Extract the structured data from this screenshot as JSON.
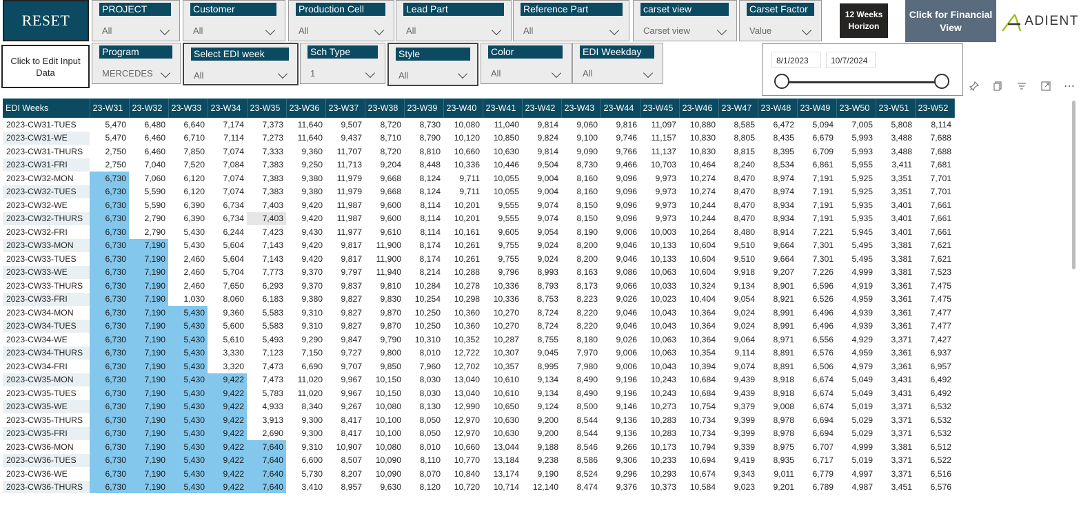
{
  "reset": {
    "label": "RESET"
  },
  "slicers_row1": [
    {
      "title": "PROJECT",
      "value": "All"
    },
    {
      "title": "Customer",
      "value": "All"
    },
    {
      "title": "Production Cell",
      "value": "All"
    },
    {
      "title": "Lead Part",
      "value": "All"
    },
    {
      "title": "Reference Part",
      "value": "All"
    },
    {
      "title": "carset view",
      "value": "Carset view"
    },
    {
      "title": "Carset Factor",
      "value": "Value"
    }
  ],
  "horizon_button": {
    "label": "12 Weeks Horizon"
  },
  "financial_button": {
    "label": "Click for Financial View"
  },
  "logo": {
    "text": "ADIENT",
    "accent": "#9bc31c"
  },
  "edit_button": {
    "label": "Click to Edit Input Data"
  },
  "slicers_row2": [
    {
      "title": "Program",
      "value": "MERCEDES"
    },
    {
      "title": "Select EDI week",
      "value": "All"
    },
    {
      "title": "Sch Type",
      "value": "1"
    },
    {
      "title": "Style",
      "value": "All"
    },
    {
      "title": "Color",
      "value": "All"
    },
    {
      "title": "EDI Weekday",
      "value": "All"
    }
  ],
  "date_range": {
    "start": "8/1/2023",
    "end": "10/7/2024"
  },
  "visual_icons": [
    "pin-icon",
    "copy-icon",
    "filter-icon",
    "focus-mode-icon",
    "more-options-icon"
  ],
  "colors": {
    "header": "#0b4a61",
    "highlight": "#83c7ec"
  },
  "table": {
    "corner": "EDI Weeks",
    "columns": [
      "23-W31",
      "23-W32",
      "23-W33",
      "23-W34",
      "23-W35",
      "23-W36",
      "23-W37",
      "23-W38",
      "23-W39",
      "23-W40",
      "23-W41",
      "23-W42",
      "23-W43",
      "23-W44",
      "23-W45",
      "23-W46",
      "23-W47",
      "23-W48",
      "23-W49",
      "23-W50",
      "23-W51",
      "23-W52"
    ],
    "rows": [
      {
        "label": "2023-CW31-TUES",
        "values": [
          "5,470",
          "6,480",
          "6,640",
          "7,174",
          "7,373",
          "11,640",
          "9,507",
          "8,720",
          "8,730",
          "10,080",
          "11,040",
          "9,814",
          "9,060",
          "9,816",
          "11,097",
          "10,880",
          "8,585",
          "6,472",
          "5,094",
          "7,005",
          "5,808",
          "8,114"
        ]
      },
      {
        "label": "2023-CW31-WE",
        "values": [
          "5,470",
          "6,460",
          "6,710",
          "7,114",
          "7,273",
          "11,640",
          "9,437",
          "8,710",
          "8,790",
          "10,120",
          "10,850",
          "9,824",
          "9,100",
          "9,746",
          "11,157",
          "10,830",
          "8,805",
          "8,435",
          "6,679",
          "5,993",
          "3,488",
          "7,688"
        ]
      },
      {
        "label": "2023-CW31-THURS",
        "values": [
          "2,750",
          "6,460",
          "7,850",
          "7,074",
          "7,333",
          "9,360",
          "11,707",
          "8,720",
          "8,810",
          "10,660",
          "10,630",
          "9,814",
          "9,090",
          "9,766",
          "11,137",
          "10,830",
          "8,815",
          "8,395",
          "6,709",
          "5,993",
          "3,488",
          "7,688"
        ]
      },
      {
        "label": "2023-CW31-FRI",
        "values": [
          "2,750",
          "7,040",
          "7,520",
          "7,084",
          "7,383",
          "9,250",
          "11,713",
          "9,204",
          "8,448",
          "10,336",
          "10,446",
          "9,504",
          "8,730",
          "9,466",
          "10,703",
          "10,464",
          "8,240",
          "8,534",
          "6,861",
          "5,955",
          "3,411",
          "7,681"
        ]
      },
      {
        "label": "2023-CW32-MON",
        "values": [
          "6,730",
          "7,060",
          "6,120",
          "7,074",
          "7,383",
          "9,380",
          "11,979",
          "9,668",
          "8,124",
          "9,711",
          "10,055",
          "9,004",
          "8,160",
          "9,096",
          "9,973",
          "10,274",
          "8,470",
          "8,974",
          "7,191",
          "5,925",
          "3,351",
          "7,701"
        ]
      },
      {
        "label": "2023-CW32-TUES",
        "values": [
          "6,730",
          "5,590",
          "6,120",
          "7,074",
          "7,383",
          "9,380",
          "11,979",
          "9,668",
          "8,124",
          "9,711",
          "10,055",
          "9,004",
          "8,160",
          "9,096",
          "9,973",
          "10,274",
          "8,470",
          "8,974",
          "7,191",
          "5,925",
          "3,351",
          "7,701"
        ]
      },
      {
        "label": "2023-CW32-WE",
        "values": [
          "6,730",
          "5,590",
          "6,390",
          "6,734",
          "7,403",
          "9,420",
          "11,987",
          "9,600",
          "8,114",
          "10,201",
          "9,555",
          "9,074",
          "8,150",
          "9,096",
          "9,973",
          "10,244",
          "8,470",
          "8,934",
          "7,191",
          "5,935",
          "3,401",
          "7,661"
        ]
      },
      {
        "label": "2023-CW32-THURS",
        "values": [
          "6,730",
          "2,790",
          "6,390",
          "6,734",
          "7,403",
          "9,420",
          "11,987",
          "9,600",
          "8,114",
          "10,201",
          "9,555",
          "9,074",
          "8,150",
          "9,096",
          "9,973",
          "10,244",
          "8,470",
          "8,934",
          "7,191",
          "5,935",
          "3,401",
          "7,661"
        ]
      },
      {
        "label": "2023-CW32-FRI",
        "values": [
          "6,730",
          "2,790",
          "5,430",
          "6,244",
          "7,423",
          "9,430",
          "11,977",
          "9,610",
          "8,114",
          "10,161",
          "9,605",
          "9,054",
          "8,190",
          "9,006",
          "10,003",
          "10,264",
          "8,480",
          "8,914",
          "7,221",
          "5,945",
          "3,401",
          "7,661"
        ]
      },
      {
        "label": "2023-CW33-MON",
        "values": [
          "6,730",
          "7,190",
          "5,430",
          "5,604",
          "7,143",
          "9,420",
          "9,817",
          "11,900",
          "8,174",
          "10,261",
          "9,755",
          "9,024",
          "8,200",
          "9,046",
          "10,133",
          "10,604",
          "9,510",
          "9,664",
          "7,301",
          "5,495",
          "3,381",
          "7,621"
        ]
      },
      {
        "label": "2023-CW33-TUES",
        "values": [
          "6,730",
          "7,190",
          "2,460",
          "5,604",
          "7,143",
          "9,420",
          "9,817",
          "11,900",
          "8,174",
          "10,261",
          "9,755",
          "9,024",
          "8,200",
          "9,046",
          "10,133",
          "10,604",
          "9,510",
          "9,664",
          "7,301",
          "5,495",
          "3,381",
          "7,621"
        ]
      },
      {
        "label": "2023-CW33-WE",
        "values": [
          "6,730",
          "7,190",
          "2,460",
          "5,704",
          "7,773",
          "9,370",
          "9,797",
          "11,940",
          "8,214",
          "10,288",
          "9,796",
          "8,993",
          "8,163",
          "9,086",
          "10,063",
          "10,604",
          "9,918",
          "9,207",
          "7,226",
          "4,999",
          "3,381",
          "7,523"
        ]
      },
      {
        "label": "2023-CW33-THURS",
        "values": [
          "6,730",
          "7,190",
          "2,460",
          "7,650",
          "6,293",
          "9,370",
          "9,837",
          "9,810",
          "10,284",
          "10,278",
          "10,336",
          "8,793",
          "8,173",
          "9,066",
          "10,033",
          "10,324",
          "9,134",
          "8,901",
          "6,596",
          "4,919",
          "3,361",
          "7,475"
        ]
      },
      {
        "label": "2023-CW33-FRI",
        "values": [
          "6,730",
          "7,190",
          "1,030",
          "8,060",
          "6,183",
          "9,380",
          "9,827",
          "9,830",
          "10,254",
          "10,298",
          "10,336",
          "8,753",
          "8,223",
          "9,026",
          "10,023",
          "10,404",
          "9,054",
          "8,921",
          "6,526",
          "4,959",
          "3,361",
          "7,475"
        ]
      },
      {
        "label": "2023-CW34-MON",
        "values": [
          "6,730",
          "7,190",
          "5,430",
          "9,360",
          "5,583",
          "9,310",
          "9,827",
          "9,870",
          "10,250",
          "10,360",
          "10,270",
          "8,724",
          "8,220",
          "9,046",
          "10,043",
          "10,364",
          "9,024",
          "8,991",
          "6,496",
          "4,939",
          "3,361",
          "7,477"
        ]
      },
      {
        "label": "2023-CW34-TUES",
        "values": [
          "6,730",
          "7,190",
          "5,430",
          "5,600",
          "5,583",
          "9,310",
          "9,827",
          "9,870",
          "10,250",
          "10,360",
          "10,270",
          "8,724",
          "8,220",
          "9,046",
          "10,043",
          "10,364",
          "9,024",
          "8,991",
          "6,496",
          "4,939",
          "3,361",
          "7,477"
        ]
      },
      {
        "label": "2023-CW34-WE",
        "values": [
          "6,730",
          "7,190",
          "5,430",
          "5,610",
          "5,493",
          "9,290",
          "9,847",
          "9,790",
          "10,310",
          "10,352",
          "10,287",
          "8,755",
          "8,180",
          "9,026",
          "10,063",
          "10,364",
          "9,064",
          "8,971",
          "6,556",
          "4,929",
          "3,371",
          "7,427"
        ]
      },
      {
        "label": "2023-CW34-THURS",
        "values": [
          "6,730",
          "7,190",
          "5,430",
          "3,330",
          "7,123",
          "7,150",
          "9,727",
          "9,800",
          "8,010",
          "12,722",
          "10,307",
          "9,045",
          "7,970",
          "9,006",
          "10,063",
          "10,354",
          "9,114",
          "8,891",
          "6,576",
          "4,959",
          "3,361",
          "6,937"
        ]
      },
      {
        "label": "2023-CW34-FRI",
        "values": [
          "6,730",
          "7,190",
          "5,430",
          "3,320",
          "7,473",
          "6,690",
          "9,707",
          "9,850",
          "7,960",
          "12,702",
          "10,357",
          "8,995",
          "7,980",
          "9,006",
          "10,043",
          "10,394",
          "9,074",
          "8,891",
          "6,506",
          "4,979",
          "3,361",
          "6,957"
        ]
      },
      {
        "label": "2023-CW35-MON",
        "values": [
          "6,730",
          "7,190",
          "5,430",
          "9,422",
          "7,473",
          "11,020",
          "9,967",
          "10,150",
          "8,030",
          "13,040",
          "10,610",
          "9,134",
          "8,490",
          "9,196",
          "10,243",
          "10,684",
          "9,439",
          "8,918",
          "6,674",
          "5,049",
          "3,431",
          "6,492"
        ]
      },
      {
        "label": "2023-CW35-TUES",
        "values": [
          "6,730",
          "7,190",
          "5,430",
          "9,422",
          "5,783",
          "11,020",
          "9,967",
          "10,150",
          "8,030",
          "13,040",
          "10,610",
          "9,134",
          "8,490",
          "9,196",
          "10,243",
          "10,684",
          "9,439",
          "8,918",
          "6,674",
          "5,049",
          "3,431",
          "6,492"
        ]
      },
      {
        "label": "2023-CW35-WE",
        "values": [
          "6,730",
          "7,190",
          "5,430",
          "9,422",
          "4,933",
          "8,340",
          "9,267",
          "10,080",
          "8,130",
          "12,990",
          "10,650",
          "9,124",
          "8,500",
          "9,146",
          "10,273",
          "10,754",
          "9,379",
          "9,008",
          "6,674",
          "5,019",
          "3,371",
          "6,532"
        ]
      },
      {
        "label": "2023-CW35-THURS",
        "values": [
          "6,730",
          "7,190",
          "5,430",
          "9,422",
          "3,913",
          "9,300",
          "8,417",
          "10,100",
          "8,050",
          "12,970",
          "10,630",
          "9,200",
          "8,544",
          "9,136",
          "10,283",
          "10,734",
          "9,399",
          "8,978",
          "6,694",
          "5,029",
          "3,371",
          "6,532"
        ]
      },
      {
        "label": "2023-CW35-FRI",
        "values": [
          "6,730",
          "7,190",
          "5,430",
          "9,422",
          "2,690",
          "9,300",
          "8,417",
          "10,100",
          "8,050",
          "12,970",
          "10,630",
          "9,200",
          "8,544",
          "9,136",
          "10,283",
          "10,734",
          "9,399",
          "8,978",
          "6,694",
          "5,029",
          "3,371",
          "6,532"
        ]
      },
      {
        "label": "2023-CW36-MON",
        "values": [
          "6,730",
          "7,190",
          "5,430",
          "9,422",
          "7,640",
          "9,310",
          "10,907",
          "10,080",
          "8,010",
          "10,660",
          "13,044",
          "9,188",
          "8,546",
          "9,266",
          "10,173",
          "10,794",
          "9,339",
          "8,975",
          "6,707",
          "4,999",
          "3,381",
          "6,512"
        ]
      },
      {
        "label": "2023-CW36-TUES",
        "values": [
          "6,730",
          "7,190",
          "5,430",
          "9,422",
          "7,640",
          "6,600",
          "8,507",
          "10,090",
          "8,110",
          "10,770",
          "13,184",
          "9,238",
          "8,586",
          "9,306",
          "10,233",
          "10,694",
          "9,419",
          "8,935",
          "6,717",
          "5,019",
          "3,371",
          "6,522"
        ]
      },
      {
        "label": "2023-CW36-WE",
        "values": [
          "6,730",
          "7,190",
          "5,430",
          "9,422",
          "7,640",
          "5,730",
          "8,207",
          "10,090",
          "8,070",
          "10,840",
          "13,174",
          "9,190",
          "8,524",
          "9,296",
          "10,293",
          "10,674",
          "9,343",
          "9,011",
          "6,779",
          "4,997",
          "3,371",
          "6,516"
        ]
      },
      {
        "label": "2023-CW36-THURS",
        "values": [
          "6,730",
          "7,190",
          "5,430",
          "9,422",
          "7,640",
          "3,410",
          "8,957",
          "9,630",
          "8,120",
          "10,720",
          "10,714",
          "12,140",
          "8,474",
          "9,376",
          "10,373",
          "10,584",
          "9,023",
          "9,201",
          "6,789",
          "4,987",
          "3,451",
          "6,576"
        ]
      }
    ]
  }
}
